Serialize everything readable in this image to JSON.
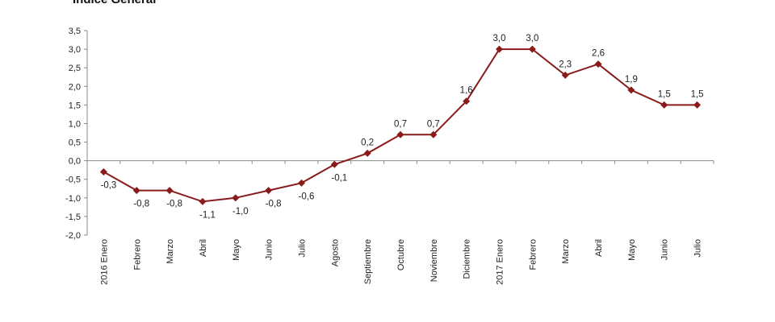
{
  "chart_data": {
    "type": "line",
    "title": "Índice General",
    "xlabel": "",
    "ylabel": "",
    "categories": [
      "2016 Enero",
      "Febrero",
      "Marzo",
      "Abril",
      "Mayo",
      "Junio",
      "Julio",
      "Agosto",
      "Septiembre",
      "Octubre",
      "Noviembre",
      "Diciembre",
      "2017 Enero",
      "Febrero",
      "Marzo",
      "Abril",
      "Mayo",
      "Junio",
      "Julio"
    ],
    "values": [
      -0.3,
      -0.8,
      -0.8,
      -1.1,
      -1.0,
      -0.8,
      -0.6,
      -0.1,
      0.2,
      0.7,
      0.7,
      1.6,
      3.0,
      3.0,
      2.3,
      2.6,
      1.9,
      1.5,
      1.5
    ],
    "data_labels": [
      "-0,3",
      "-0,8",
      "-0,8",
      "-1,1",
      "-1,0",
      "-0,8",
      "-0,6",
      "-0,1",
      "0,2",
      "0,7",
      "0,7",
      "1,6",
      "3,0",
      "3,0",
      "2,3",
      "2,6",
      "1,9",
      "1,5",
      "1,5"
    ],
    "y_ticks": [
      "3,5",
      "3,0",
      "2,5",
      "2,0",
      "1,5",
      "1,0",
      "0,5",
      "0,0",
      "-0,5",
      "-1,0",
      "-1,5",
      "-2,0"
    ],
    "ylim": [
      -2.0,
      3.5
    ],
    "grid": false,
    "legend": "none",
    "series_color": "#8b1a1a"
  }
}
